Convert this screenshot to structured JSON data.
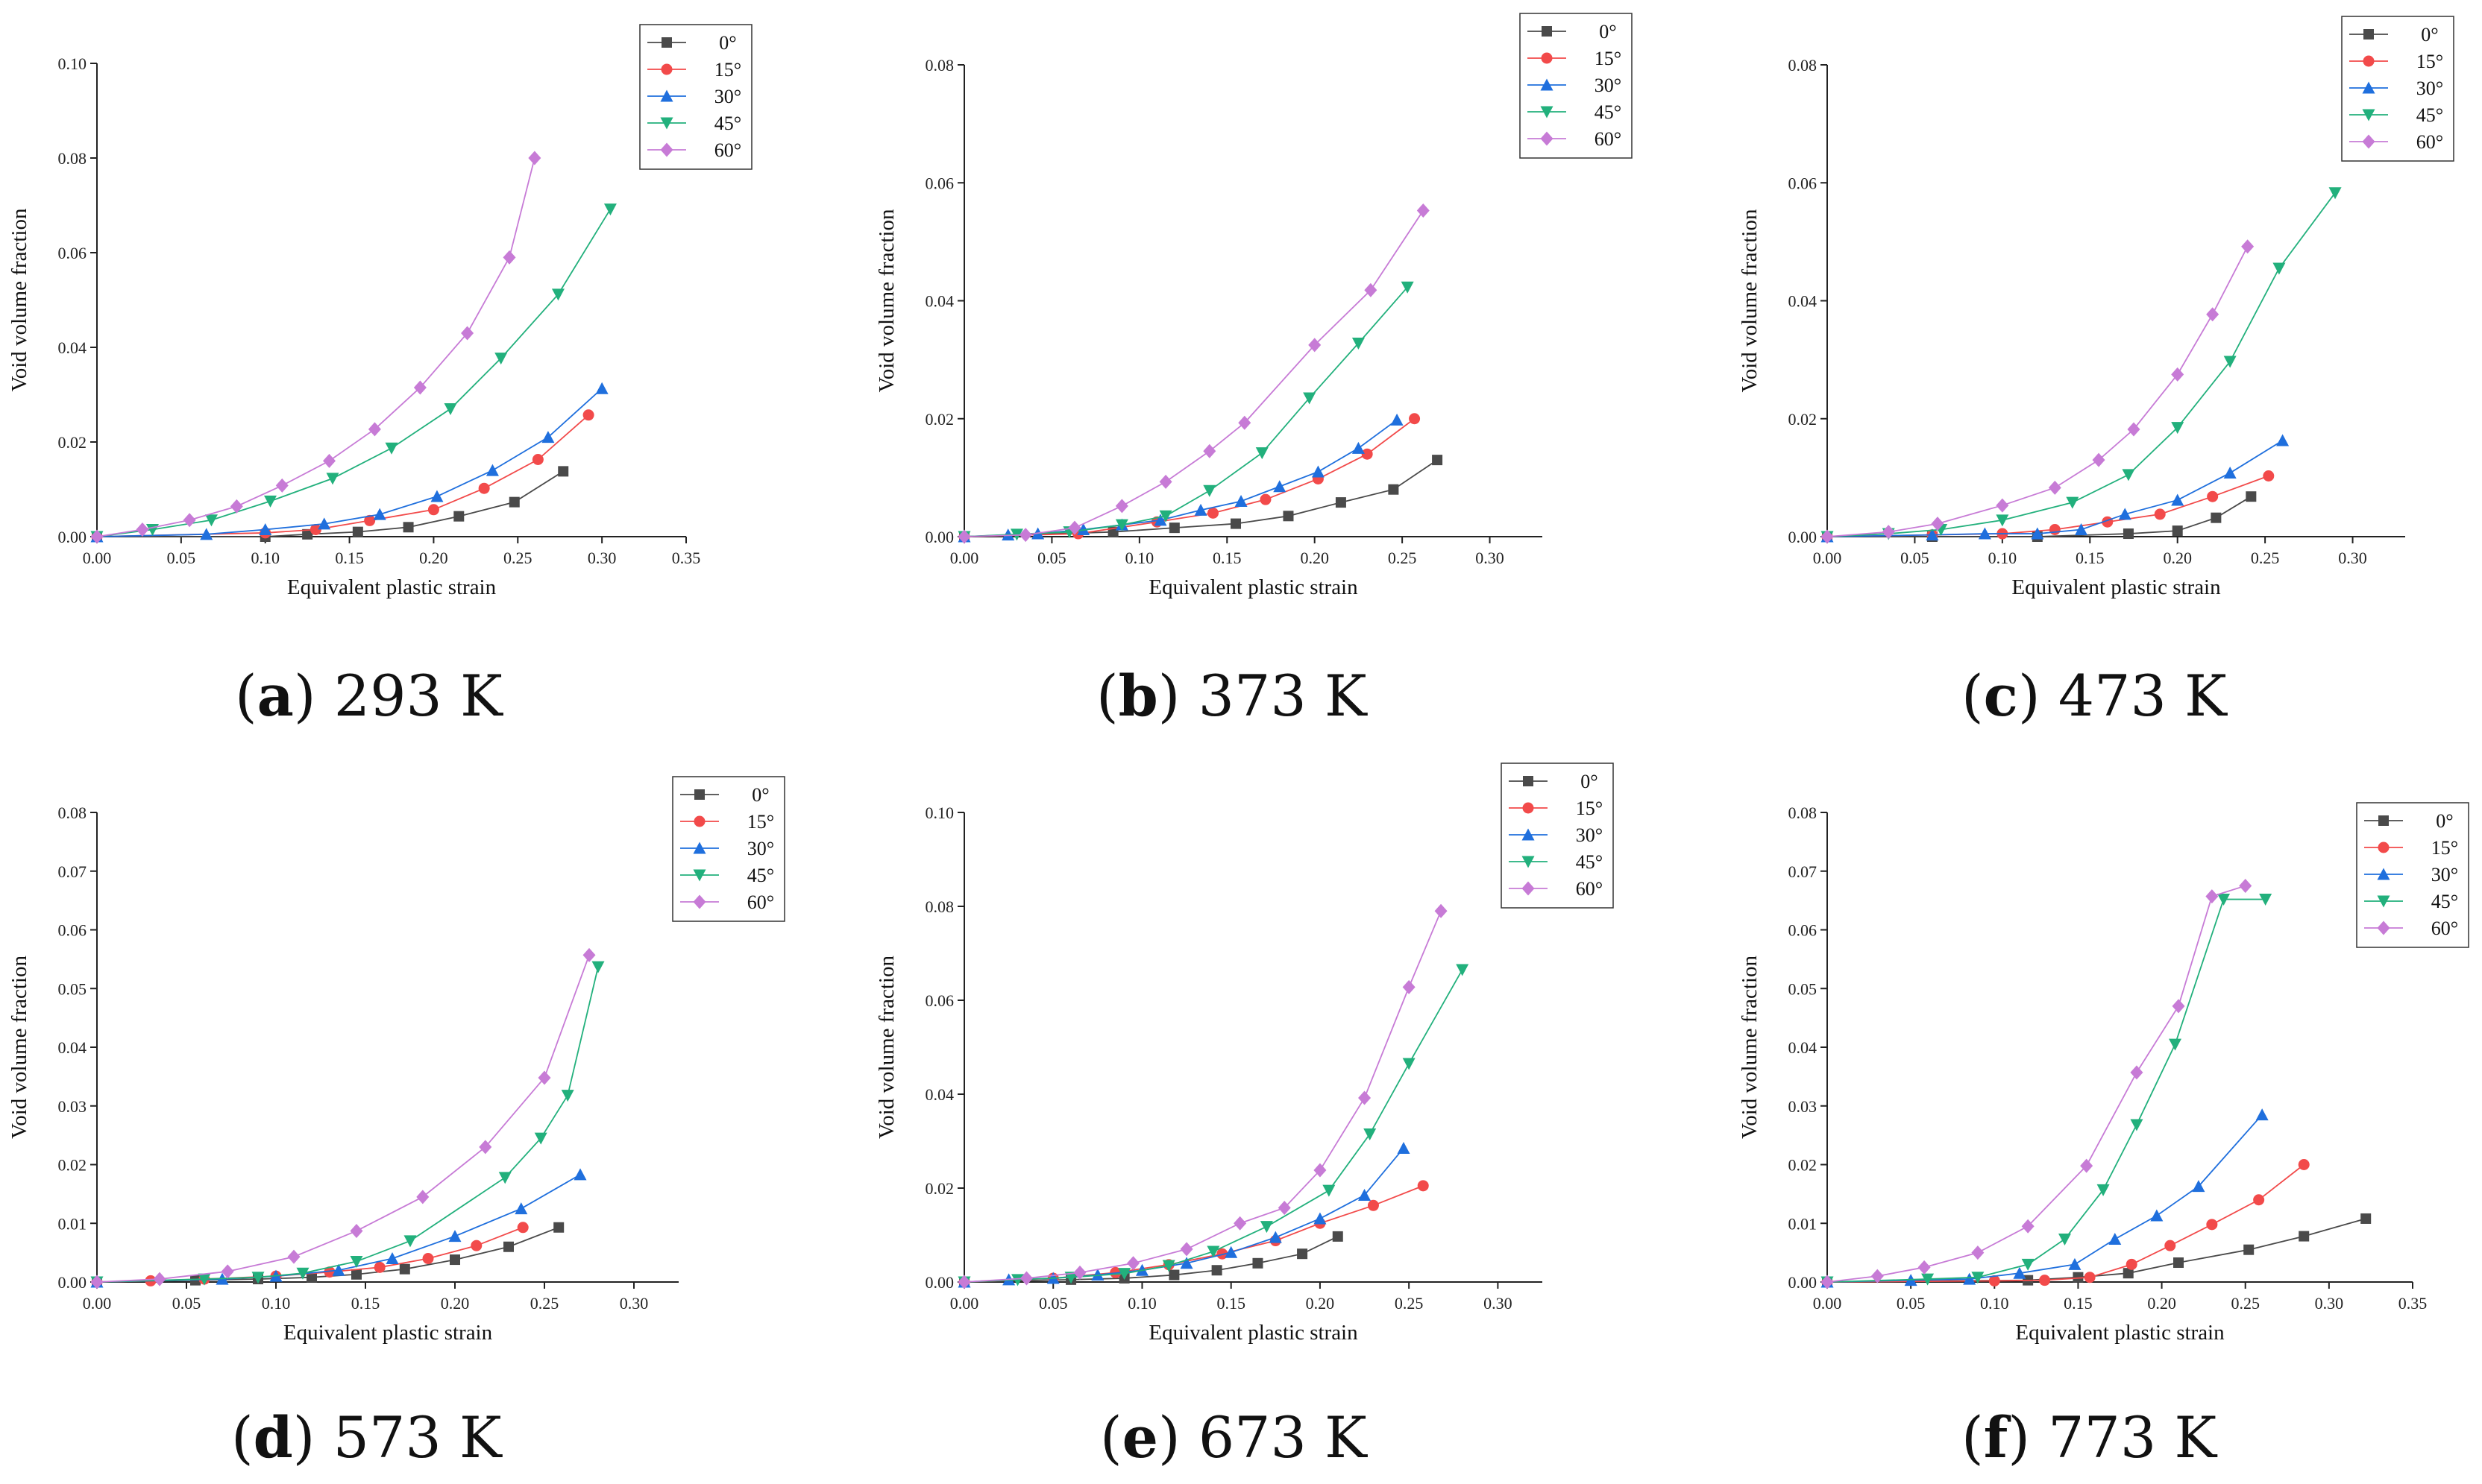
{
  "chart_data": [
    {
      "type": "line",
      "panel": "a",
      "caption_letter": "a",
      "caption_text": "293 K",
      "title": "",
      "xlabel": "Equivalent plastic strain",
      "ylabel": "Void volume fraction",
      "xlim": [
        0,
        0.35
      ],
      "ylim": [
        0,
        0.1
      ],
      "xticks": [
        "0.00",
        "0.05",
        "0.10",
        "0.15",
        "0.20",
        "0.25",
        "0.30",
        "0.35"
      ],
      "yticks": [
        "0.00",
        "0.02",
        "0.04",
        "0.06",
        "0.08",
        "0.10"
      ],
      "legend_position": "top-right",
      "series": [
        {
          "name": "0°",
          "x": [
            0.0,
            0.1,
            0.125,
            0.155,
            0.185,
            0.215,
            0.248,
            0.277
          ],
          "y": [
            0.0,
            0.0,
            0.0005,
            0.001,
            0.002,
            0.0043,
            0.0073,
            0.0138
          ]
        },
        {
          "name": "15°",
          "x": [
            0.0,
            0.1,
            0.13,
            0.162,
            0.2,
            0.23,
            0.262,
            0.292
          ],
          "y": [
            0.0,
            0.0008,
            0.0015,
            0.0034,
            0.0057,
            0.0102,
            0.0163,
            0.0257
          ]
        },
        {
          "name": "30°",
          "x": [
            0.0,
            0.065,
            0.1,
            0.135,
            0.168,
            0.202,
            0.235,
            0.268,
            0.3
          ],
          "y": [
            0.0,
            0.0005,
            0.0015,
            0.0027,
            0.0047,
            0.0085,
            0.014,
            0.021,
            0.0313
          ]
        },
        {
          "name": "45°",
          "x": [
            0.0,
            0.033,
            0.068,
            0.103,
            0.14,
            0.175,
            0.21,
            0.24,
            0.274,
            0.305
          ],
          "y": [
            0.0,
            0.0015,
            0.0035,
            0.0075,
            0.0123,
            0.0187,
            0.027,
            0.0377,
            0.0512,
            0.0692
          ]
        },
        {
          "name": "60°",
          "x": [
            0.0,
            0.027,
            0.055,
            0.083,
            0.11,
            0.138,
            0.165,
            0.192,
            0.22,
            0.245,
            0.26
          ],
          "y": [
            0.0,
            0.0015,
            0.0035,
            0.0064,
            0.0108,
            0.016,
            0.0227,
            0.0315,
            0.043,
            0.059,
            0.08
          ]
        }
      ]
    },
    {
      "type": "line",
      "panel": "b",
      "caption_letter": "b",
      "caption_text": "373 K",
      "title": "",
      "xlabel": "Equivalent plastic strain",
      "ylabel": "Void volume fraction",
      "xlim": [
        0,
        0.33
      ],
      "ylim": [
        0,
        0.08
      ],
      "xticks": [
        "0.00",
        "0.05",
        "0.10",
        "0.15",
        "0.20",
        "0.25",
        "0.30"
      ],
      "yticks": [
        "0.00",
        "0.02",
        "0.04",
        "0.06",
        "0.08"
      ],
      "legend_position": "top-right",
      "series": [
        {
          "name": "0°",
          "x": [
            0.0,
            0.085,
            0.12,
            0.155,
            0.185,
            0.215,
            0.245,
            0.27
          ],
          "y": [
            0.0,
            0.0008,
            0.0015,
            0.0022,
            0.0035,
            0.0058,
            0.008,
            0.013
          ]
        },
        {
          "name": "15°",
          "x": [
            0.0,
            0.065,
            0.11,
            0.142,
            0.172,
            0.202,
            0.23,
            0.257
          ],
          "y": [
            0.0,
            0.0005,
            0.0025,
            0.004,
            0.0063,
            0.0098,
            0.014,
            0.02
          ]
        },
        {
          "name": "30°",
          "x": [
            0.0,
            0.025,
            0.042,
            0.068,
            0.09,
            0.112,
            0.135,
            0.158,
            0.18,
            0.202,
            0.225,
            0.247
          ],
          "y": [
            0.0,
            0.0003,
            0.0005,
            0.0012,
            0.002,
            0.0028,
            0.0045,
            0.006,
            0.0085,
            0.011,
            0.015,
            0.0198
          ]
        },
        {
          "name": "45°",
          "x": [
            0.0,
            0.03,
            0.06,
            0.09,
            0.115,
            0.14,
            0.17,
            0.197,
            0.225,
            0.253
          ],
          "y": [
            0.0,
            0.0004,
            0.0008,
            0.002,
            0.0035,
            0.0078,
            0.0142,
            0.0235,
            0.0328,
            0.0423
          ]
        },
        {
          "name": "60°",
          "x": [
            0.0,
            0.035,
            0.063,
            0.09,
            0.115,
            0.14,
            0.16,
            0.2,
            0.232,
            0.262
          ],
          "y": [
            0.0,
            0.0003,
            0.0015,
            0.0052,
            0.0093,
            0.0145,
            0.0193,
            0.0325,
            0.0418,
            0.0553
          ]
        }
      ]
    },
    {
      "type": "line",
      "panel": "c",
      "caption_letter": "c",
      "caption_text": "473 K",
      "title": "",
      "xlabel": "Equivalent plastic strain",
      "ylabel": "Void volume fraction",
      "xlim": [
        0,
        0.33
      ],
      "ylim": [
        0,
        0.08
      ],
      "xticks": [
        "0.00",
        "0.05",
        "0.10",
        "0.15",
        "0.20",
        "0.25",
        "0.30"
      ],
      "yticks": [
        "0.00",
        "0.02",
        "0.04",
        "0.06",
        "0.08"
      ],
      "legend_position": "top-right",
      "series": [
        {
          "name": "0°",
          "x": [
            0.0,
            0.06,
            0.12,
            0.172,
            0.2,
            0.222,
            0.242
          ],
          "y": [
            0.0,
            0.0,
            0.0,
            0.0005,
            0.001,
            0.0032,
            0.0068
          ]
        },
        {
          "name": "15°",
          "x": [
            0.0,
            0.06,
            0.1,
            0.13,
            0.16,
            0.19,
            0.22,
            0.252
          ],
          "y": [
            0.0,
            0.0003,
            0.0005,
            0.0012,
            0.0025,
            0.0038,
            0.0068,
            0.0103
          ]
        },
        {
          "name": "30°",
          "x": [
            0.0,
            0.06,
            0.09,
            0.12,
            0.145,
            0.17,
            0.2,
            0.23,
            0.26
          ],
          "y": [
            0.0,
            0.0003,
            0.0005,
            0.0005,
            0.0012,
            0.0038,
            0.0062,
            0.0108,
            0.0163
          ]
        },
        {
          "name": "45°",
          "x": [
            0.0,
            0.035,
            0.065,
            0.1,
            0.14,
            0.172,
            0.2,
            0.23,
            0.258,
            0.29
          ],
          "y": [
            0.0,
            0.0005,
            0.0012,
            0.0028,
            0.0058,
            0.0105,
            0.0185,
            0.0297,
            0.0455,
            0.0583
          ]
        },
        {
          "name": "60°",
          "x": [
            0.0,
            0.035,
            0.063,
            0.1,
            0.13,
            0.155,
            0.175,
            0.2,
            0.22,
            0.24
          ],
          "y": [
            0.0,
            0.0008,
            0.0022,
            0.0053,
            0.0083,
            0.013,
            0.0182,
            0.0275,
            0.0377,
            0.0492
          ]
        }
      ]
    },
    {
      "type": "line",
      "panel": "d",
      "caption_letter": "d",
      "caption_text": "573 K",
      "title": "",
      "xlabel": "Equivalent plastic strain",
      "ylabel": "Void volume fraction",
      "xlim": [
        0,
        0.325
      ],
      "ylim": [
        0,
        0.08
      ],
      "xticks": [
        "0.00",
        "0.05",
        "0.10",
        "0.15",
        "0.20",
        "0.25",
        "0.30"
      ],
      "yticks": [
        "0.00",
        "0.01",
        "0.02",
        "0.03",
        "0.04",
        "0.05",
        "0.06",
        "0.07",
        "0.08"
      ],
      "legend_position": "top-right",
      "series": [
        {
          "name": "0°",
          "x": [
            0.0,
            0.055,
            0.09,
            0.12,
            0.145,
            0.172,
            0.2,
            0.23,
            0.258
          ],
          "y": [
            0.0,
            0.0003,
            0.0005,
            0.0008,
            0.0013,
            0.0022,
            0.0038,
            0.006,
            0.0093
          ]
        },
        {
          "name": "15°",
          "x": [
            0.0,
            0.03,
            0.06,
            0.1,
            0.13,
            0.158,
            0.185,
            0.212,
            0.238
          ],
          "y": [
            0.0,
            0.0002,
            0.0005,
            0.001,
            0.0017,
            0.0025,
            0.004,
            0.0062,
            0.0093
          ]
        },
        {
          "name": "30°",
          "x": [
            0.0,
            0.07,
            0.1,
            0.135,
            0.165,
            0.2,
            0.237,
            0.27
          ],
          "y": [
            0.0,
            0.0005,
            0.001,
            0.002,
            0.004,
            0.0078,
            0.0125,
            0.0183
          ]
        },
        {
          "name": "45°",
          "x": [
            0.0,
            0.06,
            0.09,
            0.115,
            0.145,
            0.175,
            0.228,
            0.248,
            0.263,
            0.28
          ],
          "y": [
            0.0,
            0.0005,
            0.0008,
            0.0015,
            0.0035,
            0.007,
            0.0178,
            0.0245,
            0.0318,
            0.0537
          ]
        },
        {
          "name": "60°",
          "x": [
            0.0,
            0.035,
            0.073,
            0.11,
            0.145,
            0.182,
            0.217,
            0.25,
            0.275
          ],
          "y": [
            0.0,
            0.0005,
            0.0018,
            0.0043,
            0.0087,
            0.0145,
            0.023,
            0.0348,
            0.0557
          ]
        }
      ]
    },
    {
      "type": "line",
      "panel": "e",
      "caption_letter": "e",
      "caption_text": "673 K",
      "title": "",
      "xlabel": "Equivalent plastic strain",
      "ylabel": "Void volume fraction",
      "xlim": [
        0,
        0.325
      ],
      "ylim": [
        0,
        0.1
      ],
      "xticks": [
        "0.00",
        "0.05",
        "0.10",
        "0.15",
        "0.20",
        "0.25",
        "0.30"
      ],
      "yticks": [
        "0.00",
        "0.02",
        "0.04",
        "0.06",
        "0.08",
        "0.10"
      ],
      "legend_position": "top-right",
      "series": [
        {
          "name": "0°",
          "x": [
            0.0,
            0.06,
            0.09,
            0.118,
            0.142,
            0.165,
            0.19,
            0.21
          ],
          "y": [
            0.0,
            0.0005,
            0.0008,
            0.0015,
            0.0025,
            0.004,
            0.006,
            0.0097
          ]
        },
        {
          "name": "15°",
          "x": [
            0.0,
            0.05,
            0.085,
            0.115,
            0.145,
            0.175,
            0.2,
            0.23,
            0.258
          ],
          "y": [
            0.0,
            0.0008,
            0.002,
            0.0037,
            0.006,
            0.0088,
            0.0125,
            0.0163,
            0.0205
          ]
        },
        {
          "name": "30°",
          "x": [
            0.0,
            0.025,
            0.05,
            0.075,
            0.1,
            0.125,
            0.15,
            0.175,
            0.2,
            0.225,
            0.247
          ],
          "y": [
            0.0,
            0.0005,
            0.0008,
            0.0015,
            0.0025,
            0.004,
            0.0063,
            0.0095,
            0.0135,
            0.0185,
            0.0285
          ]
        },
        {
          "name": "45°",
          "x": [
            0.0,
            0.03,
            0.06,
            0.09,
            0.115,
            0.14,
            0.17,
            0.205,
            0.228,
            0.25,
            0.28
          ],
          "y": [
            0.0,
            0.0005,
            0.001,
            0.0018,
            0.0035,
            0.0065,
            0.0118,
            0.0195,
            0.0315,
            0.0465,
            0.0665
          ]
        },
        {
          "name": "60°",
          "x": [
            0.0,
            0.035,
            0.065,
            0.095,
            0.125,
            0.155,
            0.18,
            0.2,
            0.225,
            0.25,
            0.268
          ],
          "y": [
            0.0,
            0.0008,
            0.002,
            0.004,
            0.007,
            0.0125,
            0.0158,
            0.0238,
            0.0392,
            0.0628,
            0.079
          ]
        }
      ]
    },
    {
      "type": "line",
      "panel": "f",
      "caption_letter": "f",
      "caption_text": "773 K",
      "title": "",
      "xlabel": "Equivalent plastic strain",
      "ylabel": "Void volume fraction",
      "xlim": [
        0,
        0.35
      ],
      "ylim": [
        0,
        0.08
      ],
      "xticks": [
        "0.00",
        "0.05",
        "0.10",
        "0.15",
        "0.20",
        "0.25",
        "0.30",
        "0.35"
      ],
      "yticks": [
        "0.00",
        "0.01",
        "0.02",
        "0.03",
        "0.04",
        "0.05",
        "0.06",
        "0.07",
        "0.08"
      ],
      "legend_position": "top-right",
      "series": [
        {
          "name": "0°",
          "x": [
            0.0,
            0.12,
            0.15,
            0.18,
            0.21,
            0.252,
            0.285,
            0.322
          ],
          "y": [
            0.0,
            0.0003,
            0.0008,
            0.0015,
            0.0033,
            0.0055,
            0.0078,
            0.0108
          ]
        },
        {
          "name": "15°",
          "x": [
            0.0,
            0.1,
            0.13,
            0.157,
            0.182,
            0.205,
            0.23,
            0.258,
            0.285
          ],
          "y": [
            0.0,
            0.0002,
            0.0003,
            0.0008,
            0.003,
            0.0062,
            0.0098,
            0.014,
            0.02
          ]
        },
        {
          "name": "30°",
          "x": [
            0.0,
            0.05,
            0.085,
            0.115,
            0.148,
            0.172,
            0.197,
            0.222,
            0.26
          ],
          "y": [
            0.0,
            0.0003,
            0.0005,
            0.0015,
            0.003,
            0.0073,
            0.0113,
            0.0163,
            0.0285
          ]
        },
        {
          "name": "45°",
          "x": [
            0.0,
            0.06,
            0.09,
            0.12,
            0.142,
            0.165,
            0.185,
            0.208,
            0.237,
            0.262
          ],
          "y": [
            0.0,
            0.0005,
            0.0008,
            0.003,
            0.0073,
            0.0157,
            0.0268,
            0.0405,
            0.0652,
            0.0652
          ]
        },
        {
          "name": "60°",
          "x": [
            0.0,
            0.03,
            0.058,
            0.09,
            0.12,
            0.155,
            0.185,
            0.21,
            0.23,
            0.25
          ],
          "y": [
            0.0,
            0.001,
            0.0025,
            0.005,
            0.0095,
            0.0198,
            0.0357,
            0.047,
            0.0657,
            0.0675
          ]
        }
      ]
    }
  ],
  "series_colors": [
    "#4a4a4a",
    "#f24a4a",
    "#1f6fdd",
    "#22b07c",
    "#c77bd6"
  ],
  "series_markers": [
    "square",
    "circle",
    "triangle-up",
    "triangle-down",
    "diamond"
  ]
}
